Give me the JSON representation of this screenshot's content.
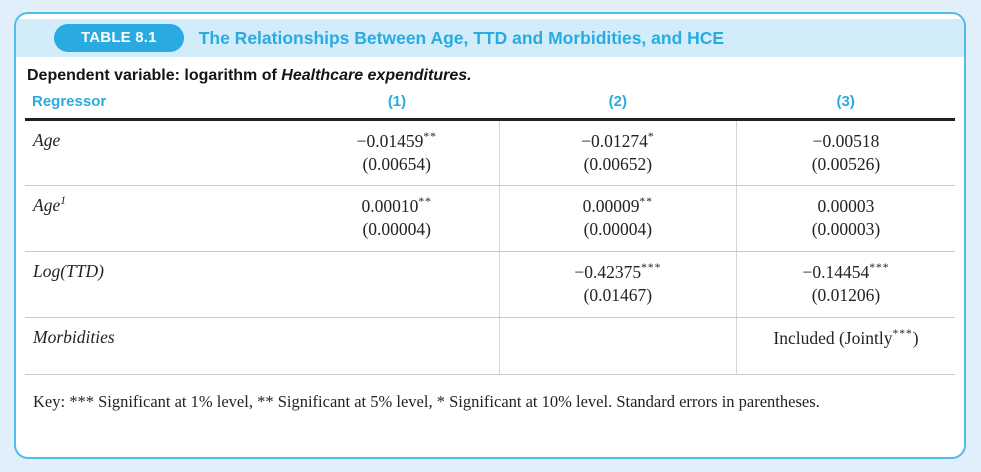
{
  "colors": {
    "page_background": "#e0effa",
    "card_border": "#4fbde9",
    "header_strip": "#d3ecf9",
    "accent_cyan": "#29abe2",
    "thick_rule": "#231f20",
    "thin_rule": "#c9c9c9",
    "body_text": "#262223"
  },
  "header": {
    "badge_label": "TABLE 8.1",
    "title": "The Relationships Between Age, TTD and Morbidities, and HCE"
  },
  "subtitle": {
    "prefix": "Dependent variable: logarithm of ",
    "emphasis": "Healthcare expenditures."
  },
  "table": {
    "columns": [
      "Regressor",
      "(1)",
      "(2)",
      "(3)"
    ],
    "rows": [
      {
        "label": "Age",
        "label_sup": "",
        "cells": [
          {
            "coef": "−0.01459",
            "stars": "**",
            "suffix": "",
            "se": "(0.00654)"
          },
          {
            "coef": "−0.01274",
            "stars": "*",
            "suffix": "",
            "se": "(0.00652)"
          },
          {
            "coef": "−0.00518",
            "stars": "",
            "suffix": "",
            "se": "(0.00526)"
          }
        ]
      },
      {
        "label": "Age",
        "label_sup": "1",
        "cells": [
          {
            "coef": "0.00010",
            "stars": "**",
            "suffix": "",
            "se": "(0.00004)"
          },
          {
            "coef": "0.00009",
            "stars": "**",
            "suffix": "",
            "se": "(0.00004)"
          },
          {
            "coef": "0.00003",
            "stars": "",
            "suffix": "",
            "se": "(0.00003)"
          }
        ]
      },
      {
        "label": "Log(TTD)",
        "label_sup": "",
        "cells": [
          {
            "coef": "",
            "stars": "",
            "suffix": "",
            "se": ""
          },
          {
            "coef": "−0.42375",
            "stars": "***",
            "suffix": "",
            "se": "(0.01467)"
          },
          {
            "coef": "−0.14454",
            "stars": "***",
            "suffix": "",
            "se": "(0.01206)"
          }
        ]
      },
      {
        "label": "Morbidities",
        "label_sup": "",
        "cells": [
          {
            "coef": "",
            "stars": "",
            "suffix": "",
            "se": ""
          },
          {
            "coef": "",
            "stars": "",
            "suffix": "",
            "se": ""
          },
          {
            "coef": "Included (Jointly",
            "stars": "***",
            "suffix": ")",
            "se": ""
          }
        ]
      }
    ],
    "key": "Key: *** Significant at 1% level, ** Significant at 5% level, * Significant at 10% level. Standard errors in parentheses."
  }
}
